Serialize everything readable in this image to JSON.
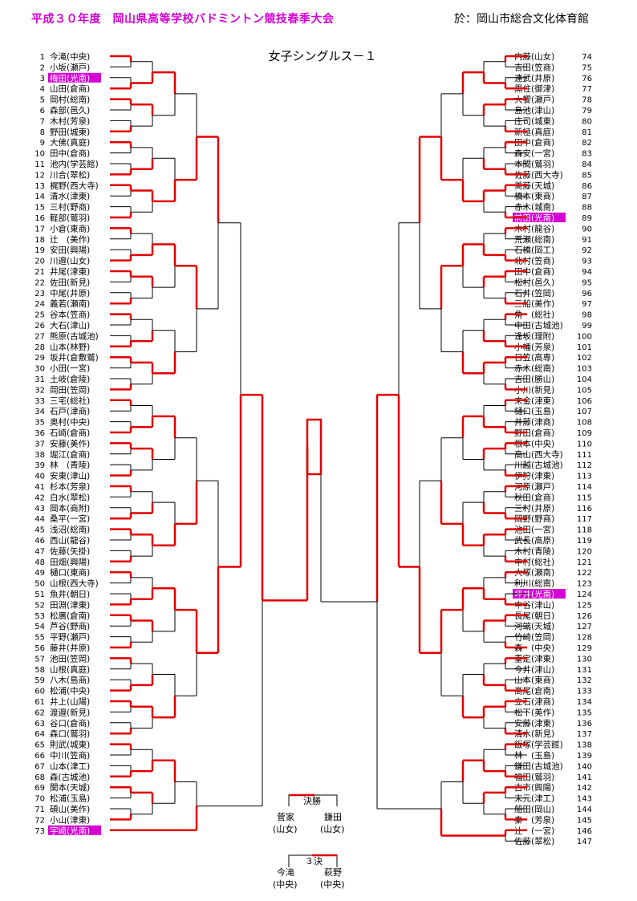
{
  "header": {
    "title": "平成３０年度　岡山県高等学校バドミントン競技春季大会",
    "venue": "於：岡山市総合文化体育館"
  },
  "event_title": "女子シングルス－１",
  "colors": {
    "highlight_bg": "#d400d4",
    "win_line": "#e00000",
    "lose_line": "#000000"
  },
  "left_players": [
    {
      "no": "1",
      "name": "今滝(中央)"
    },
    {
      "no": "2",
      "name": "小坂(瀬戸)"
    },
    {
      "no": "3",
      "name": "梅田(光南)",
      "seed": true
    },
    {
      "no": "4",
      "name": "山田(倉商)"
    },
    {
      "no": "5",
      "name": "岡村(総南)"
    },
    {
      "no": "6",
      "name": "森部(邑久)"
    },
    {
      "no": "7",
      "name": "木村(芳泉)"
    },
    {
      "no": "8",
      "name": "野田(城東)"
    },
    {
      "no": "9",
      "name": "大佛(真庭)"
    },
    {
      "no": "10",
      "name": "田中(倉商)"
    },
    {
      "no": "11",
      "name": "池内(学芸館)"
    },
    {
      "no": "12",
      "name": "川合(翠松)"
    },
    {
      "no": "13",
      "name": "梶野(西大寺)"
    },
    {
      "no": "14",
      "name": "清水(津東)"
    },
    {
      "no": "15",
      "name": "三村(野商)"
    },
    {
      "no": "16",
      "name": "軽部(鷲羽)"
    },
    {
      "no": "17",
      "name": "小倉(東商)"
    },
    {
      "no": "18",
      "name": "辻　(美作)"
    },
    {
      "no": "19",
      "name": "安田(興陽)"
    },
    {
      "no": "20",
      "name": "川邉(山女)"
    },
    {
      "no": "21",
      "name": "井尾(津東)"
    },
    {
      "no": "22",
      "name": "佐田(新見)"
    },
    {
      "no": "23",
      "name": "中尾(井原)"
    },
    {
      "no": "24",
      "name": "義若(瀬南)"
    },
    {
      "no": "25",
      "name": "谷本(笠商)"
    },
    {
      "no": "26",
      "name": "大石(津山)"
    },
    {
      "no": "27",
      "name": "熊原(古城池)"
    },
    {
      "no": "28",
      "name": "山本(林野)"
    },
    {
      "no": "29",
      "name": "坂井(倉敷鷲)"
    },
    {
      "no": "30",
      "name": "小田(一宮)"
    },
    {
      "no": "31",
      "name": "土岐(倉陵)"
    },
    {
      "no": "32",
      "name": "岡田(笠岡)"
    },
    {
      "no": "33",
      "name": "三宅(総社)"
    },
    {
      "no": "34",
      "name": "石戸(津商)"
    },
    {
      "no": "35",
      "name": "奥村(中央)"
    },
    {
      "no": "36",
      "name": "石崎(倉商)"
    },
    {
      "no": "37",
      "name": "安藤(美作)"
    },
    {
      "no": "38",
      "name": "堀江(倉商)"
    },
    {
      "no": "39",
      "name": "林　(青陵)"
    },
    {
      "no": "40",
      "name": "安東(津山)"
    },
    {
      "no": "41",
      "name": "杉本(芳泉)"
    },
    {
      "no": "42",
      "name": "白水(翠松)"
    },
    {
      "no": "43",
      "name": "岡本(商附)"
    },
    {
      "no": "44",
      "name": "桑平(一宮)"
    },
    {
      "no": "45",
      "name": "浅沼(総南)"
    },
    {
      "no": "46",
      "name": "西山(龍谷)"
    },
    {
      "no": "47",
      "name": "佐藤(矢掛)"
    },
    {
      "no": "48",
      "name": "田畑(興陽)"
    },
    {
      "no": "49",
      "name": "樋口(東商)"
    },
    {
      "no": "50",
      "name": "山根(西大寺)"
    },
    {
      "no": "51",
      "name": "魚井(朝日)"
    },
    {
      "no": "52",
      "name": "田淵(津東)"
    },
    {
      "no": "53",
      "name": "松廣(倉南)"
    },
    {
      "no": "54",
      "name": "芦谷(野商)"
    },
    {
      "no": "55",
      "name": "平野(瀬戸)"
    },
    {
      "no": "56",
      "name": "藤井(井原)"
    },
    {
      "no": "57",
      "name": "池田(笠岡)"
    },
    {
      "no": "58",
      "name": "山根(真庭)"
    },
    {
      "no": "59",
      "name": "八木(島商)"
    },
    {
      "no": "60",
      "name": "松浦(中央)"
    },
    {
      "no": "61",
      "name": "井上(山陽)"
    },
    {
      "no": "62",
      "name": "渡邉(新見)"
    },
    {
      "no": "63",
      "name": "谷口(倉商)"
    },
    {
      "no": "64",
      "name": "森口(鷲羽)"
    },
    {
      "no": "65",
      "name": "則武(城東)"
    },
    {
      "no": "66",
      "name": "中川(笠商)"
    },
    {
      "no": "67",
      "name": "山本(津工)"
    },
    {
      "no": "68",
      "name": "森(古城池)"
    },
    {
      "no": "69",
      "name": "関本(天城)"
    },
    {
      "no": "70",
      "name": "松浦(玉島)"
    },
    {
      "no": "71",
      "name": "碩山(美作)"
    },
    {
      "no": "72",
      "name": "小山(津東)"
    },
    {
      "no": "73",
      "name": "宇崎(光南)",
      "seed": true
    }
  ],
  "right_players": [
    {
      "no": "74",
      "name": "内藤(山女)"
    },
    {
      "no": "75",
      "name": "吉田(笠商)"
    },
    {
      "no": "76",
      "name": "遠武(井原)"
    },
    {
      "no": "77",
      "name": "黒住(御津)"
    },
    {
      "no": "78",
      "name": "大饗(瀬戸)"
    },
    {
      "no": "79",
      "name": "島池(津山)"
    },
    {
      "no": "80",
      "name": "庄司(城東)"
    },
    {
      "no": "81",
      "name": "新極(真庭)"
    },
    {
      "no": "82",
      "name": "田中(倉商)"
    },
    {
      "no": "83",
      "name": "森安(一宮)"
    },
    {
      "no": "84",
      "name": "本間(鷲羽)"
    },
    {
      "no": "85",
      "name": "佐藤(西大寺)"
    },
    {
      "no": "86",
      "name": "美藤(天城)"
    },
    {
      "no": "87",
      "name": "橋本(東商)"
    },
    {
      "no": "88",
      "name": "赤木(城南)"
    },
    {
      "no": "89",
      "name": "前田(光南)",
      "seed": true
    },
    {
      "no": "90",
      "name": "木村(龍谷)"
    },
    {
      "no": "91",
      "name": "荒瀬(総南)"
    },
    {
      "no": "92",
      "name": "石橋(岡工)"
    },
    {
      "no": "93",
      "name": "北村(笠商)"
    },
    {
      "no": "94",
      "name": "田中(倉商)"
    },
    {
      "no": "95",
      "name": "松村(邑久)"
    },
    {
      "no": "96",
      "name": "石井(笠岡)"
    },
    {
      "no": "97",
      "name": "三船(美作)"
    },
    {
      "no": "98",
      "name": "角　(総社)"
    },
    {
      "no": "99",
      "name": "中田(古城池)"
    },
    {
      "no": "100",
      "name": "逢坂(理附)"
    },
    {
      "no": "101",
      "name": "小幡(芳泉)"
    },
    {
      "no": "102",
      "name": "日笠(高専)"
    },
    {
      "no": "103",
      "name": "赤木(総南)"
    },
    {
      "no": "104",
      "name": "吉田(勝山)"
    },
    {
      "no": "105",
      "name": "小川(新見)"
    },
    {
      "no": "106",
      "name": "末金(津東)"
    },
    {
      "no": "107",
      "name": "樋口(玉島)"
    },
    {
      "no": "108",
      "name": "井藤(津商)"
    },
    {
      "no": "109",
      "name": "野田(倉商)"
    },
    {
      "no": "110",
      "name": "根本(中央)"
    },
    {
      "no": "111",
      "name": "高山(西大寺)"
    },
    {
      "no": "112",
      "name": "川越(古城池)"
    },
    {
      "no": "113",
      "name": "伊狩(津東)"
    },
    {
      "no": "114",
      "name": "河原(瀬戸)"
    },
    {
      "no": "115",
      "name": "秋田(倉商)"
    },
    {
      "no": "116",
      "name": "三村(井原)"
    },
    {
      "no": "117",
      "name": "岡野(野商)"
    },
    {
      "no": "118",
      "name": "池田(一宮)"
    },
    {
      "no": "119",
      "name": "武長(高原)"
    },
    {
      "no": "120",
      "name": "木村(青陵)"
    },
    {
      "no": "121",
      "name": "中村(総社)"
    },
    {
      "no": "122",
      "name": "大塚(瀬南)"
    },
    {
      "no": "123",
      "name": "利川(総南)"
    },
    {
      "no": "124",
      "name": "坪井(光南)",
      "seed": true
    },
    {
      "no": "125",
      "name": "中谷(津山)"
    },
    {
      "no": "126",
      "name": "長尾(朝日)"
    },
    {
      "no": "127",
      "name": "河端(天城)"
    },
    {
      "no": "128",
      "name": "竹崎(笠岡)"
    },
    {
      "no": "129",
      "name": "森　(中央)"
    },
    {
      "no": "130",
      "name": "重定(津東)"
    },
    {
      "no": "131",
      "name": "今井(津山)"
    },
    {
      "no": "132",
      "name": "山本(東商)"
    },
    {
      "no": "133",
      "name": "髙尾(倉南)"
    },
    {
      "no": "134",
      "name": "立石(津商)"
    },
    {
      "no": "135",
      "name": "松下(美作)"
    },
    {
      "no": "136",
      "name": "安藤(津東)"
    },
    {
      "no": "137",
      "name": "清水(新見)"
    },
    {
      "no": "138",
      "name": "飯塚(学芸館)"
    },
    {
      "no": "139",
      "name": "林　(玉島)"
    },
    {
      "no": "140",
      "name": "鎌田(古城池)"
    },
    {
      "no": "141",
      "name": "福田(鷲羽)"
    },
    {
      "no": "142",
      "name": "古市(興陽)"
    },
    {
      "no": "143",
      "name": "末元(津工)"
    },
    {
      "no": "144",
      "name": "船田(岡山)"
    },
    {
      "no": "145",
      "name": "秦　(芳泉)"
    },
    {
      "no": "146",
      "name": "辻　(一宮)"
    },
    {
      "no": "147",
      "name": "佐藤(翠松)"
    }
  ],
  "final": {
    "label": "決勝",
    "player_a_name": "菅家",
    "player_a_school": "(山女)",
    "player_b_name": "鎌田",
    "player_b_school": "(山女)"
  },
  "third_place": {
    "label": "３決",
    "player_a_name": "今滝",
    "player_a_school": "(中央)",
    "player_b_name": "萩野",
    "player_b_school": "(中央)"
  }
}
